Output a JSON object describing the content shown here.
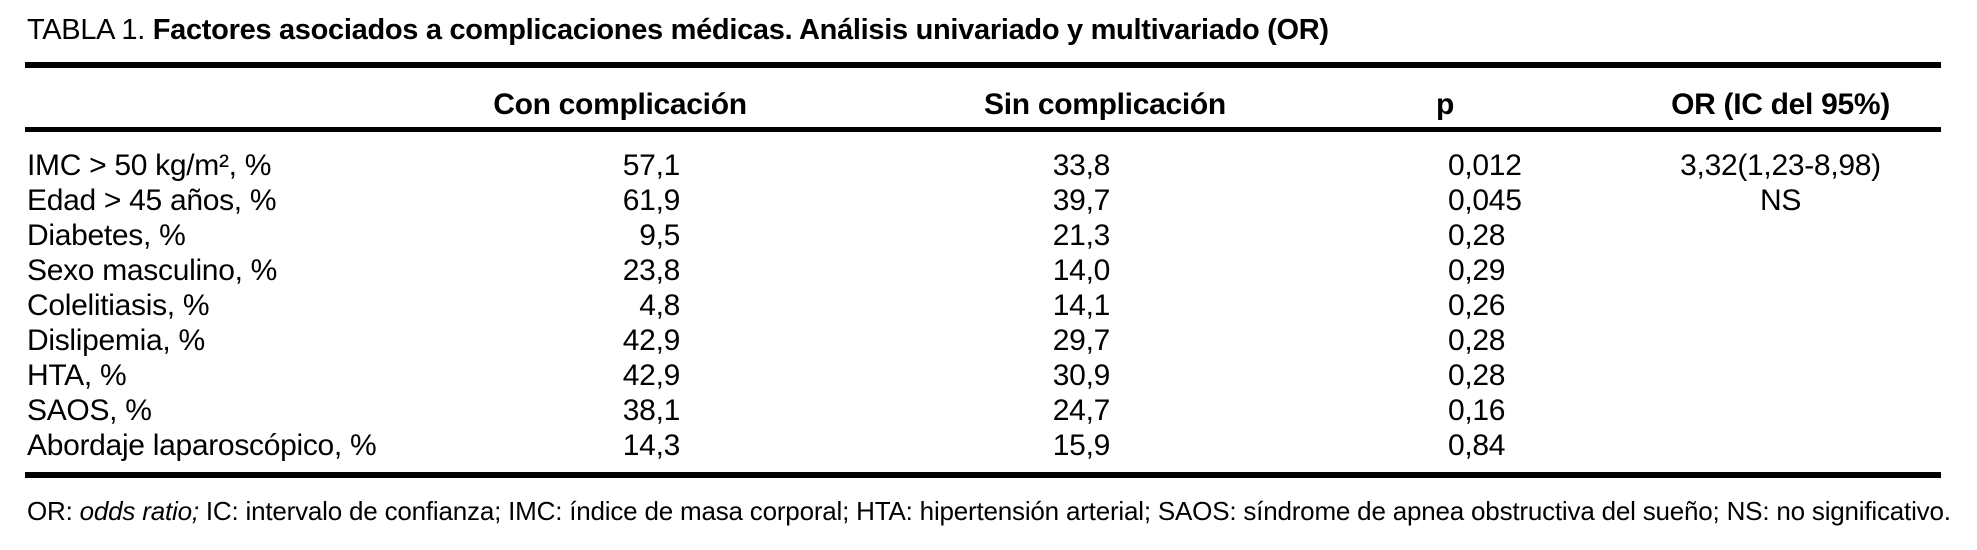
{
  "title": {
    "label": "TABLA 1.",
    "text": "Factores asociados a complicaciones médicas. Análisis univariado y multivariado (OR)"
  },
  "table": {
    "columns": [
      "",
      "Con complicación",
      "Sin complicación",
      "p",
      "OR (IC del 95%)"
    ],
    "rows": [
      {
        "factor": "IMC > 50 kg/m², %",
        "con": "57,1",
        "sin": "33,8",
        "p": "0,012",
        "or": "3,32(1,23-8,98)"
      },
      {
        "factor": "Edad > 45 años, %",
        "con": "61,9",
        "sin": "39,7",
        "p": "0,045",
        "or": "NS"
      },
      {
        "factor": "Diabetes, %",
        "con": "9,5",
        "sin": "21,3",
        "p": "0,28",
        "or": ""
      },
      {
        "factor": "Sexo masculino, %",
        "con": "23,8",
        "sin": "14,0",
        "p": "0,29",
        "or": ""
      },
      {
        "factor": "Colelitiasis, %",
        "con": "4,8",
        "sin": "14,1",
        "p": "0,26",
        "or": ""
      },
      {
        "factor": "Dislipemia, %",
        "con": "42,9",
        "sin": "29,7",
        "p": "0,28",
        "or": ""
      },
      {
        "factor": "HTA, %",
        "con": "42,9",
        "sin": "30,9",
        "p": "0,28",
        "or": ""
      },
      {
        "factor": "SAOS, %",
        "con": "38,1",
        "sin": "24,7",
        "p": "0,16",
        "or": ""
      },
      {
        "factor": "Abordaje laparoscópico, %",
        "con": "14,3",
        "sin": "15,9",
        "p": "0,84",
        "or": ""
      }
    ]
  },
  "footnote": {
    "prefix": "OR: ",
    "italic": "odds ratio;",
    "rest": " IC: intervalo de confianza; IMC: índice de masa corporal; HTA: hipertensión arterial; SAOS: síndrome de apnea obstructiva del sueño; NS: no significativo."
  }
}
